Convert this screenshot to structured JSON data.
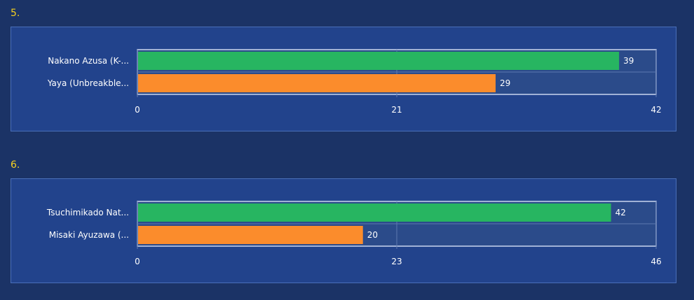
{
  "colors": {
    "background": "#1b3366",
    "panel": "#22438c",
    "plot_area": "#2b4b8a",
    "bar_green": "#27b561",
    "bar_orange": "#fb8c2c",
    "heading": "#f5d020"
  },
  "chart_data": [
    {
      "type": "bar",
      "orientation": "horizontal",
      "heading": "5.",
      "categories": [
        "Nakano Azusa (K-...",
        "Yaya (Unbreakble..."
      ],
      "values": [
        39,
        29
      ],
      "bar_colors": [
        "#27b561",
        "#fb8c2c"
      ],
      "xlim": [
        0,
        42
      ],
      "ticks": [
        "0",
        "21",
        "42"
      ],
      "grid": true
    },
    {
      "type": "bar",
      "orientation": "horizontal",
      "heading": "6.",
      "categories": [
        "Tsuchimikado Nat...",
        "Misaki Ayuzawa (..."
      ],
      "values": [
        42,
        20
      ],
      "bar_colors": [
        "#27b561",
        "#fb8c2c"
      ],
      "xlim": [
        0,
        46
      ],
      "ticks": [
        "0",
        "23",
        "46"
      ],
      "grid": true
    }
  ]
}
